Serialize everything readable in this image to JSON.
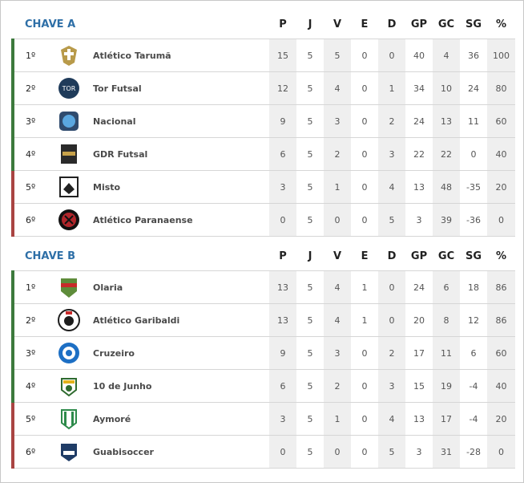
{
  "columns": [
    "P",
    "J",
    "V",
    "E",
    "D",
    "GP",
    "GC",
    "SG",
    "%"
  ],
  "groups": [
    {
      "title": "CHAVE A",
      "teams": [
        {
          "pos": "1º",
          "name": "Atlético Tarumã",
          "stats": [
            "15",
            "5",
            "5",
            "0",
            "0",
            "40",
            "4",
            "36",
            "100"
          ],
          "logo": "atletico-taruma-crest-icon",
          "zone": "top"
        },
        {
          "pos": "2º",
          "name": "Tor Futsal",
          "stats": [
            "12",
            "5",
            "4",
            "0",
            "1",
            "34",
            "10",
            "24",
            "80"
          ],
          "logo": "tor-futsal-crest-icon",
          "zone": "top"
        },
        {
          "pos": "3º",
          "name": "Nacional",
          "stats": [
            "9",
            "5",
            "3",
            "0",
            "2",
            "24",
            "13",
            "11",
            "60"
          ],
          "logo": "nacional-crest-icon",
          "zone": "top"
        },
        {
          "pos": "4º",
          "name": "GDR Futsal",
          "stats": [
            "6",
            "5",
            "2",
            "0",
            "3",
            "22",
            "22",
            "0",
            "40"
          ],
          "logo": "gdr-futsal-crest-icon",
          "zone": "top"
        },
        {
          "pos": "5º",
          "name": "Misto",
          "stats": [
            "3",
            "5",
            "1",
            "0",
            "4",
            "13",
            "48",
            "-35",
            "20"
          ],
          "logo": "misto-crest-icon",
          "zone": "bottom"
        },
        {
          "pos": "6º",
          "name": "Atlético Paranaense",
          "stats": [
            "0",
            "5",
            "0",
            "0",
            "5",
            "3",
            "39",
            "-36",
            "0"
          ],
          "logo": "atletico-paranaense-crest-icon",
          "zone": "bottom"
        }
      ]
    },
    {
      "title": "CHAVE B",
      "teams": [
        {
          "pos": "1º",
          "name": "Olaria",
          "stats": [
            "13",
            "5",
            "4",
            "1",
            "0",
            "24",
            "6",
            "18",
            "86"
          ],
          "logo": "olaria-crest-icon",
          "zone": "top"
        },
        {
          "pos": "2º",
          "name": "Atlético Garibaldi",
          "stats": [
            "13",
            "5",
            "4",
            "1",
            "0",
            "20",
            "8",
            "12",
            "86"
          ],
          "logo": "atletico-garibaldi-crest-icon",
          "zone": "top"
        },
        {
          "pos": "3º",
          "name": "Cruzeiro",
          "stats": [
            "9",
            "5",
            "3",
            "0",
            "2",
            "17",
            "11",
            "6",
            "60"
          ],
          "logo": "cruzeiro-crest-icon",
          "zone": "top"
        },
        {
          "pos": "4º",
          "name": "10 de Junho",
          "stats": [
            "6",
            "5",
            "2",
            "0",
            "3",
            "15",
            "19",
            "-4",
            "40"
          ],
          "logo": "10-de-junho-crest-icon",
          "zone": "top"
        },
        {
          "pos": "5º",
          "name": "Aymoré",
          "stats": [
            "3",
            "5",
            "1",
            "0",
            "4",
            "13",
            "17",
            "-4",
            "20"
          ],
          "logo": "aymore-crest-icon",
          "zone": "bottom"
        },
        {
          "pos": "6º",
          "name": "Guabisoccer",
          "stats": [
            "0",
            "5",
            "0",
            "0",
            "5",
            "3",
            "31",
            "-28",
            "0"
          ],
          "logo": "guabisoccer-crest-icon",
          "zone": "bottom"
        }
      ]
    }
  ],
  "colors": {
    "title": "#2e6fa7",
    "upper_zone": "#3c7a3c",
    "lower_zone": "#a94442",
    "shaded_column": "#efefef"
  }
}
